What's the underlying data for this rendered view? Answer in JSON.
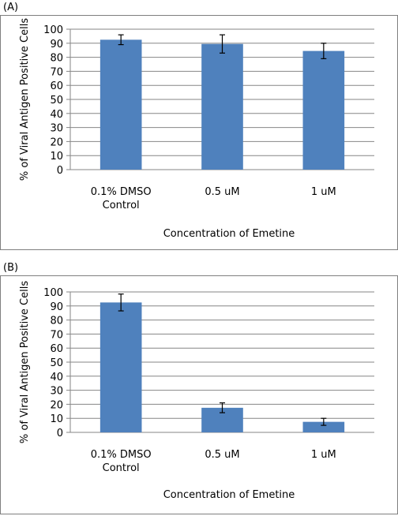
{
  "chart_data": [
    {
      "panel": "(A)",
      "type": "bar",
      "categories": [
        [
          "0.1% DMSO",
          "Control"
        ],
        [
          "0.5 uM"
        ],
        [
          "1 uM"
        ]
      ],
      "values": [
        92.5,
        89.5,
        84.5
      ],
      "error_bars": [
        3.5,
        6.5,
        5.5
      ],
      "xlabel": "Concentration of Emetine",
      "ylabel": "% of Viral Antigen Positive Cells",
      "ylim": [
        0,
        100
      ],
      "yticks": [
        0,
        10,
        20,
        30,
        40,
        50,
        60,
        70,
        80,
        90,
        100
      ],
      "grid": true,
      "bar_color": "#4f81bd"
    },
    {
      "panel": "(B)",
      "type": "bar",
      "categories": [
        [
          "0.1% DMSO",
          "Control"
        ],
        [
          "0.5 uM"
        ],
        [
          "1 uM"
        ]
      ],
      "values": [
        92.5,
        17.5,
        7.5
      ],
      "error_bars": [
        6.0,
        3.5,
        2.5
      ],
      "xlabel": "Concentration of Emetine",
      "ylabel": "% of Viral Antigen Positive Cells",
      "ylim": [
        0,
        100
      ],
      "yticks": [
        0,
        10,
        20,
        30,
        40,
        50,
        60,
        70,
        80,
        90,
        100
      ],
      "grid": true,
      "bar_color": "#4f81bd"
    }
  ]
}
